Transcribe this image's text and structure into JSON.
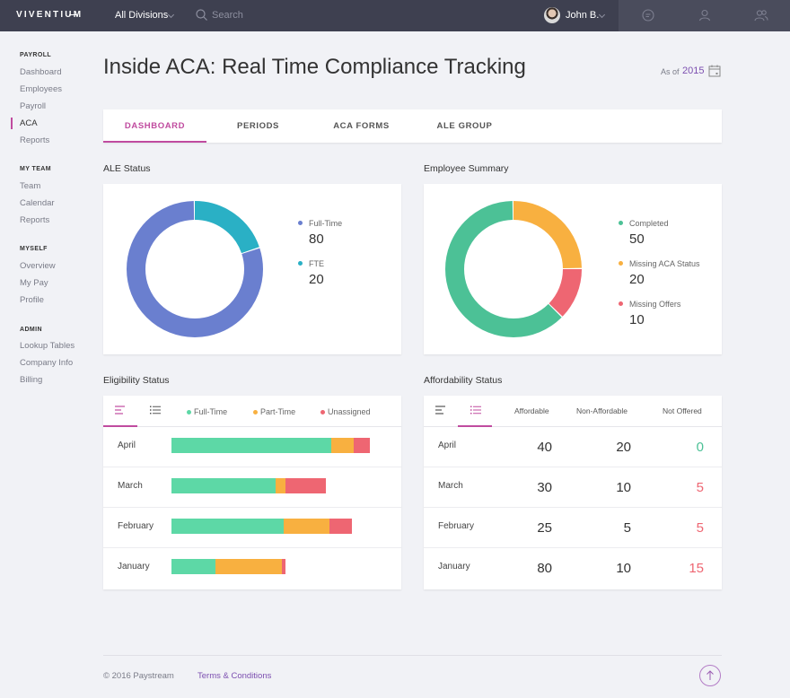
{
  "topbar": {
    "logo": "VIVENTIUM",
    "division": "All Divisions",
    "search_placeholder": "Search",
    "user_name": "John B."
  },
  "sidebar": {
    "sections": [
      {
        "title": "PAYROLL",
        "items": [
          "Dashboard",
          "Employees",
          "Payroll",
          "ACA",
          "Reports"
        ]
      },
      {
        "title": "MY TEAM",
        "items": [
          "Team",
          "Calendar",
          "Reports"
        ]
      },
      {
        "title": "MYSELF",
        "items": [
          "Overview",
          "My Pay",
          "Profile"
        ]
      },
      {
        "title": "ADMIN",
        "items": [
          "Lookup Tables",
          "Company Info",
          "Billing"
        ]
      }
    ],
    "active_item": "ACA"
  },
  "header": {
    "title": "Inside ACA: Real Time Compliance Tracking",
    "as_of_label": "As of",
    "as_of_year": "2015"
  },
  "tabs": [
    "DASHBOARD",
    "PERIODS",
    "ACA FORMS",
    "ALE GROUP"
  ],
  "active_tab": "DASHBOARD",
  "ale_status": {
    "title": "ALE Status",
    "items": [
      {
        "label": "Full-Time",
        "value": 80,
        "color": "#6a7fcf"
      },
      {
        "label": "FTE",
        "value": 20,
        "color": "#2ab0c5"
      }
    ]
  },
  "employee_summary": {
    "title": "Employee Summary",
    "items": [
      {
        "label": "Completed",
        "value": 50,
        "color": "#4cc196"
      },
      {
        "label": "Missing ACA Status",
        "value": 20,
        "color": "#f8b040"
      },
      {
        "label": "Missing Offers",
        "value": 10,
        "color": "#ee6672"
      }
    ]
  },
  "eligibility": {
    "title": "Eligibility Status",
    "legend": [
      {
        "label": "Full-Time",
        "color": "#5dd8a6"
      },
      {
        "label": "Part-Time",
        "color": "#f8b040"
      },
      {
        "label": "Unassigned",
        "color": "#ee6672"
      }
    ],
    "rows": [
      {
        "month": "April",
        "full_time": 80,
        "part_time": 11,
        "unassigned": 8
      },
      {
        "month": "March",
        "full_time": 52,
        "part_time": 5,
        "unassigned": 20
      },
      {
        "month": "February",
        "full_time": 56,
        "part_time": 23,
        "unassigned": 11
      },
      {
        "month": "January",
        "full_time": 22,
        "part_time": 33,
        "unassigned": 2
      }
    ]
  },
  "affordability": {
    "title": "Affordability Status",
    "columns": [
      "Affordable",
      "Non-Affordable",
      "Not Offered"
    ],
    "rows": [
      {
        "month": "April",
        "affordable": "40",
        "non_affordable": "20",
        "not_offered": "0",
        "not_offered_color": "#4cc196"
      },
      {
        "month": "March",
        "affordable": "30",
        "non_affordable": "10",
        "not_offered": "5",
        "not_offered_color": "#ee6672"
      },
      {
        "month": "February",
        "affordable": "25",
        "non_affordable": "5",
        "not_offered": "5",
        "not_offered_color": "#ee6672"
      },
      {
        "month": "January",
        "affordable": "80",
        "non_affordable": "10",
        "not_offered": "15",
        "not_offered_color": "#ee6672"
      }
    ]
  },
  "footer": {
    "copyright": "© 2016 Paystream",
    "terms": "Terms & Conditions"
  },
  "colors": {
    "accent": "#c04b9f",
    "link": "#7c4fb0"
  }
}
